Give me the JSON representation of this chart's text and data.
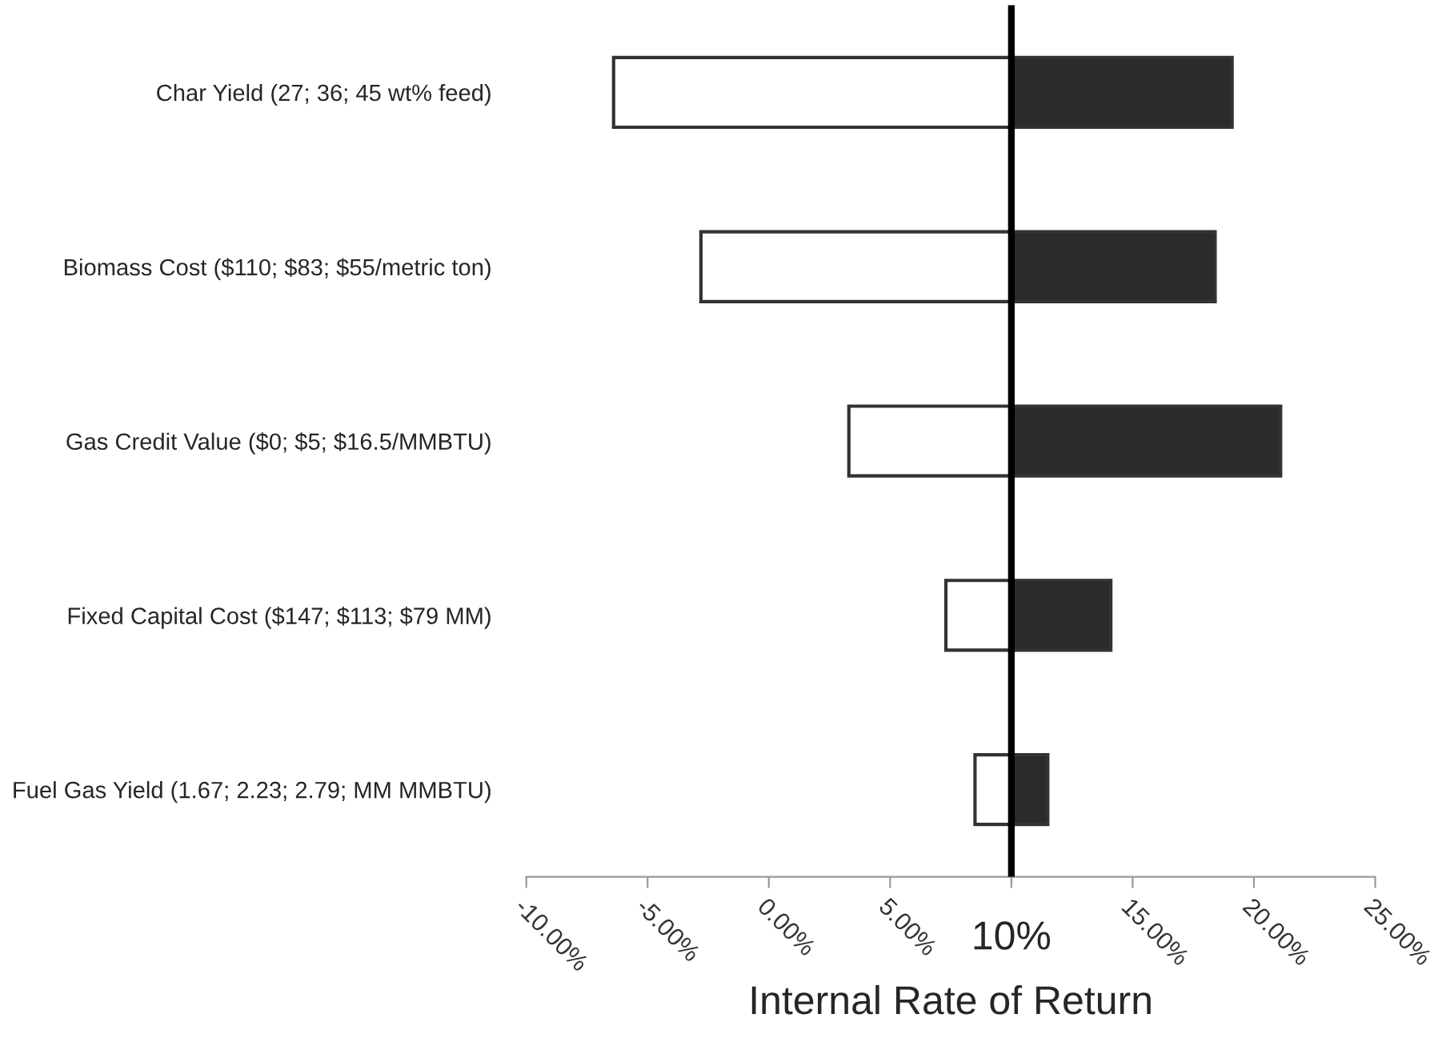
{
  "chart_data": {
    "type": "bar",
    "orientation": "horizontal",
    "xlabel": "Internal Rate of Return",
    "categories": [
      "Char Yield (27; 36; 45 wt% feed)",
      "Biomass Cost ($110; $83; $55/metric ton)",
      "Gas Credit Value ($0; $5; $16.5/MMBTU)",
      "Fixed Capital Cost ($147; $113; $79 MM)",
      "Fuel Gas Yield (1.67; 2.23; 2.79; MM MMBTU)"
    ],
    "series": [
      {
        "color": "#ffffff",
        "base": [
          -6.4,
          -2.8,
          3.3,
          7.3,
          8.5
        ],
        "values": [
          16.4,
          12.8,
          6.7,
          2.7,
          1.5
        ]
      },
      {
        "color": "#2b2b2b",
        "base": [
          10,
          10,
          10,
          10,
          10
        ],
        "values": [
          9.1,
          8.4,
          11.1,
          4.1,
          1.5
        ]
      }
    ],
    "xlim": [
      -10,
      25
    ],
    "xticks": [
      {
        "value": -10,
        "label": "-10.00%"
      },
      {
        "value": -5,
        "label": "-5.00%"
      },
      {
        "value": 0,
        "label": "0.00%"
      },
      {
        "value": 5,
        "label": "5.00%"
      },
      {
        "value": 10,
        "label": null
      },
      {
        "value": 15,
        "label": "15.00%"
      },
      {
        "value": 20,
        "label": "20.00%"
      },
      {
        "value": 25,
        "label": "25.00%"
      }
    ],
    "ref_lines": [
      {
        "axis": "x",
        "value": 10,
        "label": "10%",
        "color": "#000000"
      }
    ],
    "grid": false,
    "legend": false
  }
}
